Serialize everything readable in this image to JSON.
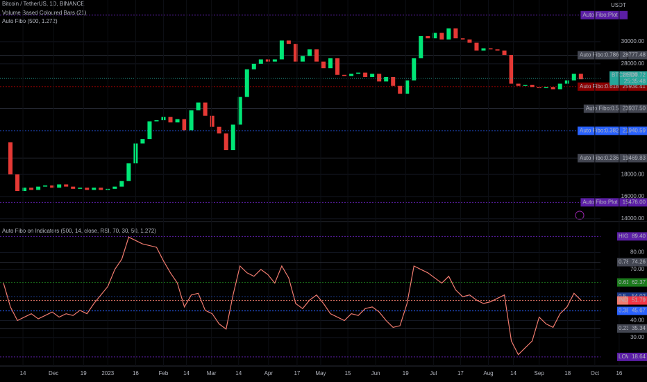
{
  "chart_data": [
    {
      "type": "candlestick",
      "title": "Bitcoin / TetherUS, 1D, BINANCE",
      "subtitles": [
        "Volume Based Coloured Bars (21)",
        "Auto Fibo (500, 1.272)"
      ],
      "currency": "USDT",
      "up_color": "#00e676",
      "down_color": "#e53935",
      "values": [
        20900,
        18000,
        16500,
        16800,
        16600,
        16900,
        17000,
        16800,
        17100,
        16900,
        16700,
        16800,
        16600,
        16800,
        16600,
        16700,
        16900,
        17400,
        19000,
        20800,
        21200,
        22800,
        22900,
        23200,
        22700,
        23000,
        22000,
        23800,
        24500,
        23300,
        22300,
        21700,
        20200,
        22500,
        25000,
        27500,
        28000,
        28400,
        28200,
        28400,
        30100,
        29800,
        28200,
        28700,
        29300,
        28200,
        27600,
        28500,
        27000,
        26900,
        27100,
        27200,
        26800,
        27100,
        26400,
        26800,
        26000,
        25300,
        26500,
        28500,
        30500,
        30300,
        30800,
        30200,
        31200,
        30300,
        30200,
        29900,
        29200,
        29400,
        29300,
        29200,
        28800,
        26200,
        26000,
        26100,
        25900,
        25800,
        25900,
        25700,
        26200,
        26500,
        27100,
        26600
      ],
      "xlim": [
        -0.5,
        92.5
      ],
      "ylim": [
        13803,
        33765
      ],
      "yticks": [
        {
          "value": 16000,
          "label": "16000.00"
        },
        {
          "value": 18000,
          "label": "18000.00"
        },
        {
          "value": 28000,
          "label": "28000.00"
        },
        {
          "value": 30000,
          "label": "30000.00"
        },
        {
          "value": 14000,
          "label": "14000.00"
        }
      ],
      "levels": {
        "names": [
          "Auto Fibo:Plot",
          "Auto Fibo:0.786",
          "Auto Fibo:0.618",
          "Auto Fibo:0.5",
          "Auto Fibo:0.382",
          "Auto Fibo:0.236",
          "Auto Fibo:Plot"
        ],
        "values": [
          32399,
          28777.48,
          25934.41,
          23937.5,
          21940.59,
          19469.83,
          15476
        ],
        "value_labels": [
          null,
          "28777.48",
          "25934.41",
          "23937.50",
          "21940.59",
          "19469.83",
          "15476.00"
        ],
        "colors": [
          "#5b1ea6",
          "#434651",
          "#8b0000",
          "#434651",
          "#2962ff",
          "#434651",
          "#5b1ea6"
        ]
      },
      "last": {
        "name": "BTCUSDT",
        "value": 26700.72,
        "countdown": "25:35:48"
      }
    },
    {
      "type": "line",
      "title": "Auto Fibo on Indicators (500, 14, close, RSI, 70, 30, 50, 1.272)",
      "color": "#f07b6f",
      "values": [
        62,
        48,
        40,
        42,
        44,
        41,
        43,
        45,
        42,
        44,
        43,
        46,
        44,
        50,
        55,
        60,
        70,
        76,
        89,
        87,
        85,
        84,
        83,
        75,
        68,
        62,
        48,
        55,
        56,
        46,
        44,
        38,
        35,
        55,
        72,
        68,
        66,
        70,
        67,
        62,
        72,
        65,
        50,
        47,
        52,
        55,
        50,
        44,
        42,
        40,
        44,
        43,
        47,
        48,
        45,
        40,
        36,
        37,
        50,
        72,
        70,
        68,
        65,
        62,
        66,
        58,
        54,
        55,
        52,
        50,
        51,
        53,
        55,
        28,
        20,
        24,
        28,
        42,
        38,
        36,
        44,
        48,
        56,
        52
      ],
      "xlim": [
        -0.5,
        92.5
      ],
      "xticks": [
        {
          "value": 2.8,
          "label": "14"
        },
        {
          "value": 7.2,
          "label": "Dec"
        },
        {
          "value": 11.5,
          "label": "19"
        },
        {
          "value": 15,
          "label": "2023"
        },
        {
          "value": 19,
          "label": "16"
        },
        {
          "value": 23,
          "label": "Feb"
        },
        {
          "value": 26.3,
          "label": "14"
        },
        {
          "value": 29.9,
          "label": "Mar"
        },
        {
          "value": 33.8,
          "label": "14"
        },
        {
          "value": 38.1,
          "label": "Apr"
        },
        {
          "value": 42.2,
          "label": "17"
        },
        {
          "value": 45.6,
          "label": "May"
        },
        {
          "value": 49.5,
          "label": "15"
        },
        {
          "value": 53.5,
          "label": "Jun"
        },
        {
          "value": 57.8,
          "label": "19"
        },
        {
          "value": 61.8,
          "label": "Jul"
        },
        {
          "value": 65.7,
          "label": "17"
        },
        {
          "value": 69.7,
          "label": "Aug"
        },
        {
          "value": 73.3,
          "label": "14"
        },
        {
          "value": 77,
          "label": "Sep"
        },
        {
          "value": 81.1,
          "label": "18"
        },
        {
          "value": 85,
          "label": "Oct"
        },
        {
          "value": 88.5,
          "label": "16"
        }
      ],
      "ylim": [
        13.7,
        97.3
      ],
      "yticks": [
        {
          "value": 30,
          "label": "30.00"
        },
        {
          "value": 40,
          "label": "40.00"
        },
        {
          "value": 70,
          "label": "70.00"
        },
        {
          "value": 80,
          "label": "80.00"
        }
      ],
      "levels": {
        "names": [
          "HIGH",
          "0.786",
          "0.618",
          "0.5",
          "IND",
          "0.382",
          "0.236",
          "LOW"
        ],
        "values": [
          89.4,
          74.26,
          62.37,
          54.02,
          51.79,
          45.67,
          35.34,
          18.64
        ],
        "value_labels": [
          "89.40",
          "74.26",
          "62.37",
          "54.02",
          "51.79",
          "45.67",
          "35.34",
          "18.64"
        ],
        "colors": [
          "#5b1ea6",
          "#434651",
          "#1b7a1b",
          "#1e3a8a",
          "#f07b6f",
          "#2962ff",
          "#434651",
          "#5b1ea6"
        ]
      }
    }
  ]
}
